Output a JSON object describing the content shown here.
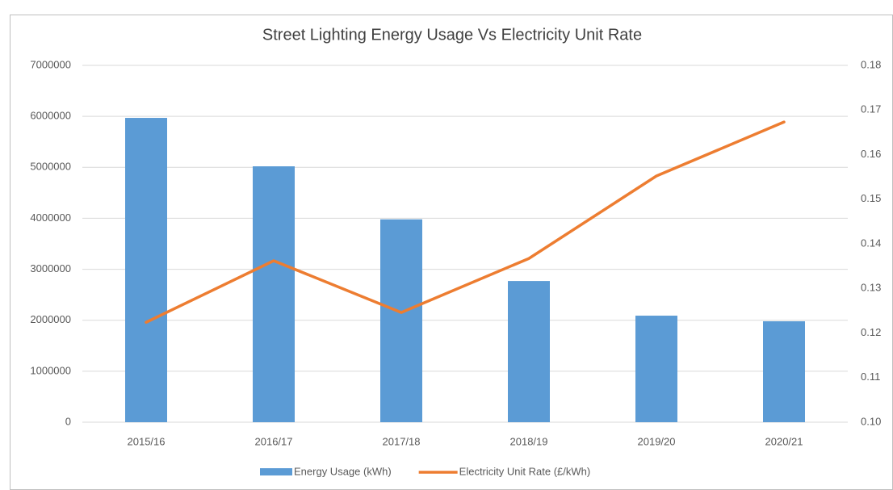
{
  "chart_data": {
    "type": "bar_line",
    "title": "Street Lighting Energy Usage Vs Electricity Unit Rate",
    "categories": [
      "2015/16",
      "2016/17",
      "2017/18",
      "2018/19",
      "2019/20",
      "2020/21"
    ],
    "series": [
      {
        "name": "Energy Usage (kWh)",
        "type": "bar",
        "color": "#5b9bd5",
        "values": [
          5970000,
          5020000,
          3980000,
          2770000,
          2090000,
          1980000
        ]
      },
      {
        "name": "Electricity Unit Rate (£/kWh)",
        "type": "line",
        "axis": "y2",
        "color": "#ed7d31",
        "values": [
          0.1224,
          0.1362,
          0.1246,
          0.1367,
          0.1552,
          0.1673
        ]
      }
    ],
    "ylim": [
      0,
      7000000
    ],
    "yticks": [
      0,
      1000000,
      2000000,
      3000000,
      4000000,
      5000000,
      6000000,
      7000000
    ],
    "y2lim": [
      0.1,
      0.18
    ],
    "y2ticks": [
      {
        "value": 0.1,
        "label": "0.10"
      },
      0.11,
      0.12,
      0.13,
      0.14,
      0.15,
      0.16,
      0.17,
      0.18
    ],
    "grid": true,
    "legend": "bottom"
  }
}
